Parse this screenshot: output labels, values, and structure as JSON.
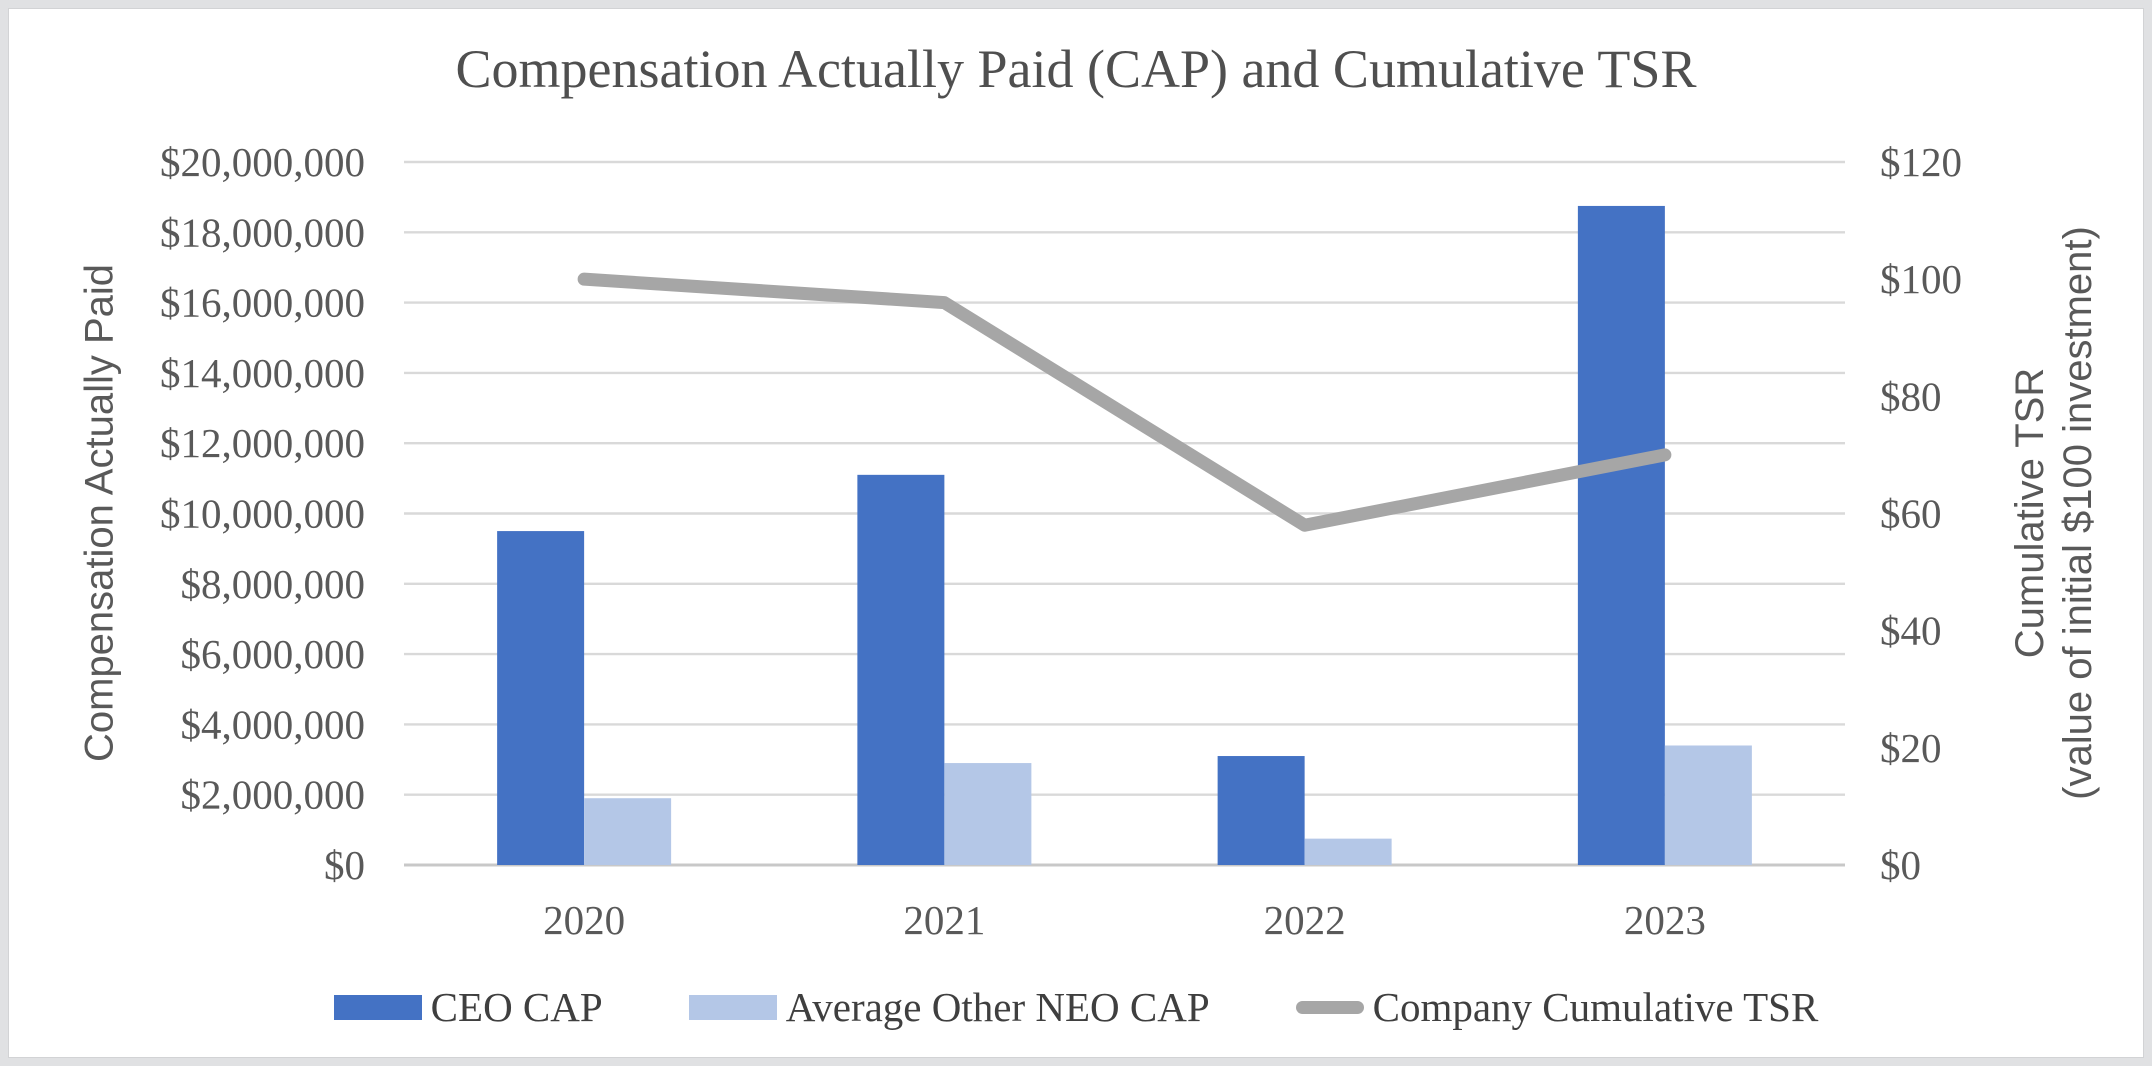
{
  "chart_data": {
    "type": "bar+line combo",
    "title": "Compensation Actually Paid (CAP) and Cumulative TSR",
    "categories": [
      "2020",
      "2021",
      "2022",
      "2023"
    ],
    "series": [
      {
        "name": "CEO CAP",
        "type": "bar",
        "axis": "left",
        "color": "#4472C4",
        "values": [
          9500000,
          11100000,
          3100000,
          18750000
        ]
      },
      {
        "name": "Average Other NEO CAP",
        "type": "bar",
        "axis": "left",
        "color": "#B4C7E7",
        "values": [
          1900000,
          2900000,
          750000,
          3400000
        ]
      },
      {
        "name": "Company Cumulative TSR",
        "type": "line",
        "axis": "right",
        "color": "#A6A6A6",
        "values": [
          100,
          96,
          58,
          70
        ]
      }
    ],
    "left_axis": {
      "title": "Compensation Actually Paid",
      "min": 0,
      "max": 20000000,
      "step": 2000000,
      "tick_prefix": "$"
    },
    "right_axis": {
      "title_line1": "Cumulative TSR",
      "title_line2": "(value of initial $100 investment)",
      "min": 0,
      "max": 120,
      "step": 20,
      "tick_prefix": "$"
    },
    "grid": true,
    "legend_position": "bottom",
    "colors": {
      "gridline": "#D9D9D9",
      "baseline": "#C8C8C8",
      "tick_text": "#595959",
      "title_text": "#4F4F4F",
      "legend_text": "#3F3F3F"
    }
  }
}
